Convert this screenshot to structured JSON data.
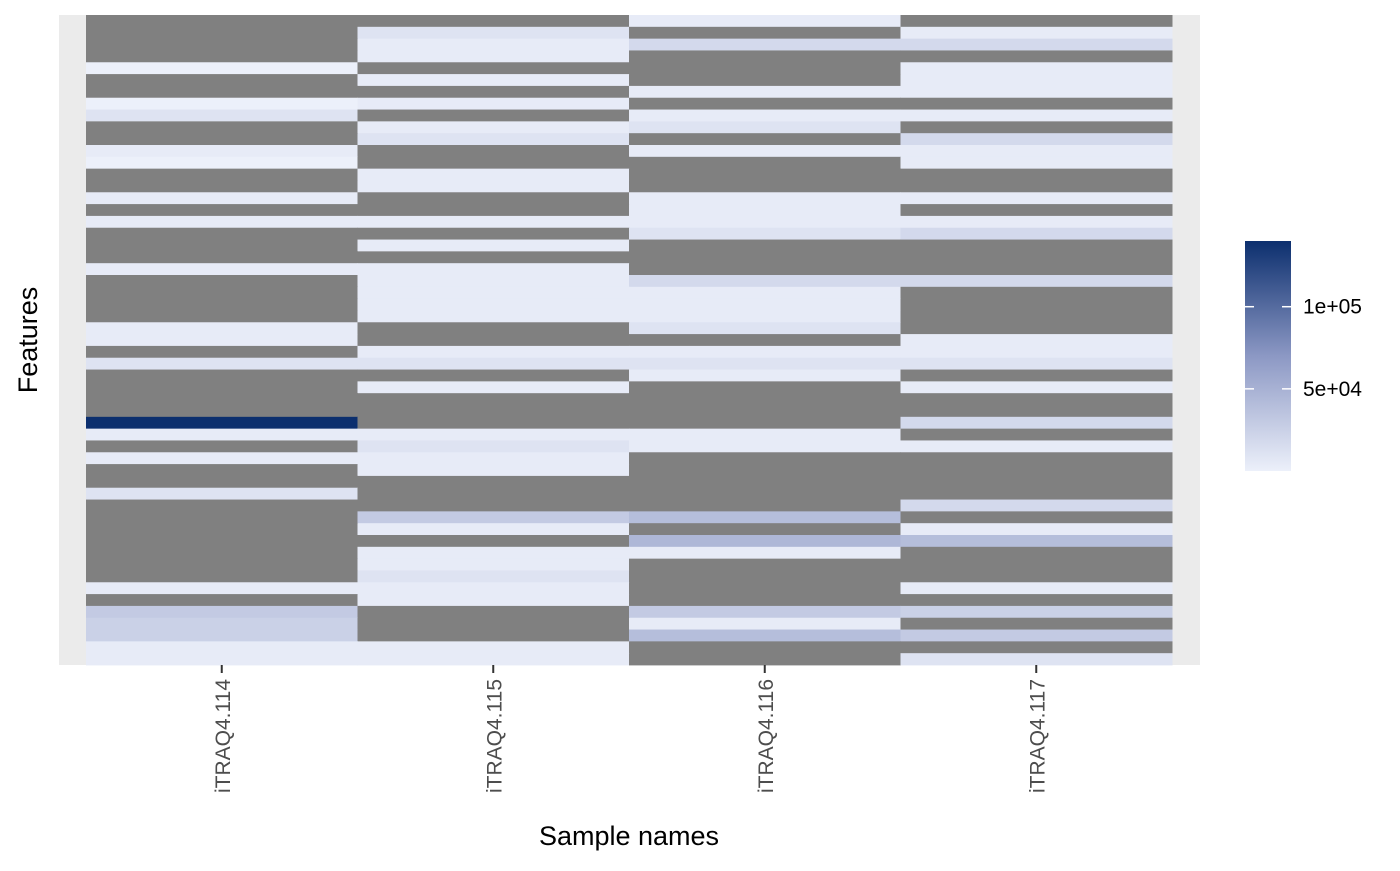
{
  "chart_data": {
    "type": "heatmap",
    "title": "",
    "xlabel": "Sample names",
    "ylabel": "Features",
    "x_categories": [
      "iTRAQ4.114",
      "iTRAQ4.115",
      "iTRAQ4.116",
      "iTRAQ4.117"
    ],
    "n_features": 55,
    "na_color": "#808080",
    "panel_background": "#ebebeb",
    "grid": false,
    "colorscale": {
      "low_color": "#ecf0fa",
      "high_color": "#0c2f6e",
      "min": 0,
      "max": 140000,
      "breaks": [
        50000,
        100000
      ],
      "break_labels": [
        "5e+04",
        "1e+05"
      ],
      "legend_position": "right",
      "legend_title": ""
    },
    "values": [
      [
        null,
        null,
        4000,
        null
      ],
      [
        null,
        10000,
        null,
        4000
      ],
      [
        null,
        4000,
        18000,
        18000
      ],
      [
        null,
        4000,
        null,
        null
      ],
      [
        0,
        null,
        null,
        4000
      ],
      [
        null,
        4000,
        null,
        4000
      ],
      [
        null,
        null,
        4000,
        4000
      ],
      [
        0,
        4000,
        null,
        null
      ],
      [
        10000,
        null,
        4000,
        4000
      ],
      [
        null,
        4000,
        10000,
        null
      ],
      [
        null,
        10000,
        null,
        18000
      ],
      [
        4000,
        null,
        4000,
        4000
      ],
      [
        0,
        null,
        null,
        4000
      ],
      [
        null,
        4000,
        null,
        null
      ],
      [
        null,
        4000,
        null,
        null
      ],
      [
        4000,
        null,
        4000,
        4000
      ],
      [
        null,
        null,
        4000,
        null
      ],
      [
        4000,
        4000,
        4000,
        4000
      ],
      [
        null,
        null,
        10000,
        18000
      ],
      [
        null,
        4000,
        null,
        null
      ],
      [
        null,
        null,
        null,
        null
      ],
      [
        4000,
        4000,
        null,
        null
      ],
      [
        null,
        4000,
        18000,
        18000
      ],
      [
        null,
        4000,
        4000,
        null
      ],
      [
        null,
        4000,
        4000,
        null
      ],
      [
        null,
        4000,
        4000,
        null
      ],
      [
        4000,
        null,
        10000,
        null
      ],
      [
        4000,
        null,
        null,
        4000
      ],
      [
        null,
        4000,
        4000,
        4000
      ],
      [
        10000,
        10000,
        10000,
        10000
      ],
      [
        null,
        null,
        4000,
        null
      ],
      [
        null,
        4000,
        null,
        4000
      ],
      [
        null,
        null,
        null,
        null
      ],
      [
        null,
        null,
        null,
        null
      ],
      [
        140000,
        null,
        null,
        18000
      ],
      [
        4000,
        4000,
        4000,
        null
      ],
      [
        null,
        10000,
        4000,
        4000
      ],
      [
        4000,
        4000,
        null,
        null
      ],
      [
        null,
        4000,
        null,
        null
      ],
      [
        null,
        null,
        null,
        null
      ],
      [
        10000,
        null,
        null,
        null
      ],
      [
        null,
        null,
        null,
        18000
      ],
      [
        null,
        30000,
        40000,
        null
      ],
      [
        null,
        4000,
        null,
        4000
      ],
      [
        null,
        null,
        45000,
        40000
      ],
      [
        null,
        4000,
        4000,
        null
      ],
      [
        null,
        4000,
        null,
        null
      ],
      [
        null,
        10000,
        null,
        null
      ],
      [
        4000,
        4000,
        null,
        4000
      ],
      [
        null,
        4000,
        null,
        null
      ],
      [
        30000,
        null,
        30000,
        25000
      ],
      [
        25000,
        null,
        4000,
        null
      ],
      [
        25000,
        null,
        40000,
        30000
      ],
      [
        4000,
        4000,
        null,
        null
      ],
      [
        4000,
        4000,
        null,
        10000
      ]
    ]
  }
}
